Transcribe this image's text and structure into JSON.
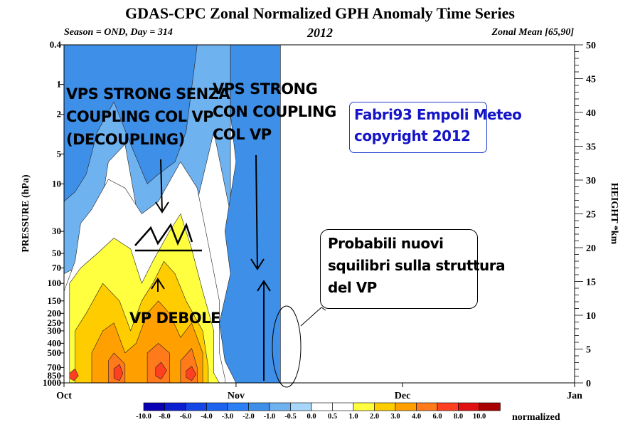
{
  "header": {
    "title": "GDAS-CPC Zonal Normalized GPH Anomaly Time Series",
    "left_subtitle": "Season = OND, Day = 314",
    "center_subtitle": "2012",
    "right_subtitle": "Zonal Mean [65,90]"
  },
  "annotations": {
    "decoupling": [
      "VPS STRONG SENZA",
      "COUPLING COL VP",
      "(DECOUPLING)"
    ],
    "coupling": [
      "VPS STRONG",
      "CON COUPLING",
      "COL VP"
    ],
    "credit": [
      "Fabri93 Empoli Meteo",
      "copyright 2012"
    ],
    "weak": "VP DEBOLE",
    "future": [
      "Probabili nuovi",
      "squilibri sulla struttura",
      "del VP"
    ]
  },
  "chart_data": {
    "type": "heatmap",
    "title": "GDAS-CPC Zonal Normalized GPH Anomaly Time Series",
    "xlabel": "",
    "ylabel": "PRESSURE (hPa)",
    "ylabel_right": "HEIGHT *km",
    "x_ticks": [
      "Oct",
      "Nov",
      "Dec",
      "Jan"
    ],
    "x_range": [
      "Oct 1",
      "Jan 1"
    ],
    "data_end": "Nov 9",
    "y_ticks_pressure": [
      0.4,
      1,
      2,
      5,
      10,
      30,
      50,
      70,
      100,
      150,
      200,
      250,
      300,
      400,
      500,
      700,
      850,
      1000
    ],
    "y_tick_labels_pressure": [
      "0.4",
      "1",
      "2",
      "5",
      "10",
      "30",
      "50",
      "70",
      "100",
      "150",
      "200",
      "250",
      "300",
      "400",
      "500",
      "700",
      "850",
      "1000"
    ],
    "y_ticks_height_km": [
      0,
      5,
      10,
      15,
      20,
      25,
      30,
      35,
      40,
      45,
      50
    ],
    "y_scale": "log-pressure",
    "colorbar_label": "normalized",
    "colorbar_boundaries": [
      "-10.0",
      "-8.0",
      "-6.0",
      "-4.0",
      "-3.0",
      "-2.0",
      "-1.0",
      "-0.5",
      "0.0",
      "0.5",
      "1.0",
      "2.0",
      "3.0",
      "4.0",
      "6.0",
      "8.0",
      "10.0"
    ],
    "colorbar_colors": [
      "#0a00b4",
      "#0b1fd0",
      "#1446e6",
      "#1c64f0",
      "#2a80f4",
      "#3e8fe8",
      "#6fb2f0",
      "#a6d6f8",
      "#ffffff",
      "#ffffff",
      "#ffff40",
      "#ffcc00",
      "#ffa000",
      "#ff7a1a",
      "#ff4020",
      "#e01010",
      "#a80000"
    ],
    "anomaly_features": [
      {
        "period": "Oct 1 – Oct 20",
        "levels_hPa": "0.4 – 10",
        "normalized": "-1.0 to -0.5",
        "color": "#6fb2f0"
      },
      {
        "period": "Oct 8 – Oct 20",
        "levels_hPa": "70 – 1000",
        "normalized": "1.0 to 3.0",
        "color": "#ffcc00"
      },
      {
        "period": "Oct 15 – Oct 27",
        "levels_hPa": "500 – 1000",
        "normalized": "3.0 to 6.0",
        "color": "#ff4020"
      },
      {
        "period": "Oct 30 – Nov 7",
        "levels_hPa": "0.4 – 1000",
        "normalized": "-2.0 to -0.5",
        "color": "#3e8fe8"
      },
      {
        "period": "Nov 4 – Nov 9",
        "levels_hPa": "0.4 – 1000",
        "normalized": "-1.0 to -0.5",
        "color": "#3e8fe8"
      }
    ]
  },
  "colors": {
    "strong_neg": "#3e8fe8",
    "weak_neg": "#6fb2f0",
    "weak_pos": "#ffff40",
    "pos": "#ffcc00",
    "strong_pos": "#ffa000",
    "very_strong_pos": "#ff7a1a",
    "extreme_pos": "#ff4020",
    "credit_text": "#1515c8"
  }
}
